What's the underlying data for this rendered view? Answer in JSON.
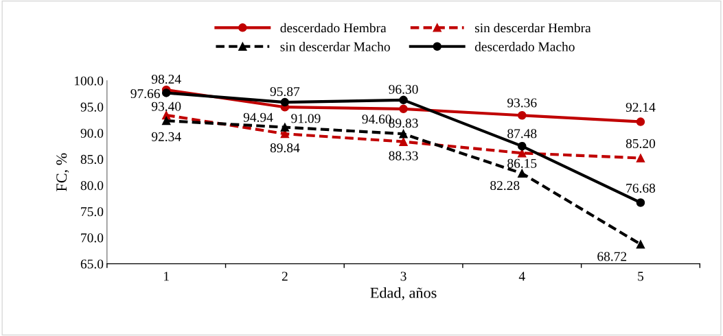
{
  "chart_data": {
    "type": "line",
    "xlabel": "Edad, años",
    "ylabel": "FC, %",
    "categories": [
      "1",
      "2",
      "3",
      "4",
      "5"
    ],
    "series": [
      {
        "name": "descerdado Hembra",
        "color": "#c00000",
        "marker": "circle",
        "line_style": "solid",
        "values": [
          98.24,
          94.94,
          94.6,
          93.36,
          92.14
        ],
        "value_labels": [
          "98.24",
          "94.94",
          "94.60",
          "93.36",
          "92.14"
        ]
      },
      {
        "name": "sin descerdar Hembra",
        "color": "#c00000",
        "marker": "triangle",
        "line_style": "dashed",
        "values": [
          93.4,
          89.84,
          88.33,
          86.15,
          85.2
        ],
        "value_labels": [
          "93.40",
          "89.84",
          "88.33",
          "86.15",
          "85.20"
        ]
      },
      {
        "name": "sin descerdar Macho",
        "color": "#000000",
        "marker": "triangle",
        "line_style": "dashed",
        "values": [
          92.34,
          91.09,
          89.83,
          82.28,
          68.72
        ],
        "value_labels": [
          "92.34",
          "91.09",
          "89.83",
          "82.28",
          "68.72"
        ]
      },
      {
        "name": "descerdado Macho",
        "color": "#000000",
        "marker": "circle",
        "line_style": "solid",
        "values": [
          97.66,
          95.87,
          96.3,
          87.48,
          76.68
        ],
        "value_labels": [
          "97.66",
          "95.87",
          "96.30",
          "87.48",
          "76.68"
        ]
      }
    ],
    "ylim": [
      65,
      100
    ],
    "yticks": [
      {
        "value": 65,
        "label": "65.0"
      },
      {
        "value": 70,
        "label": "70.0"
      },
      {
        "value": 75,
        "label": "75.0"
      },
      {
        "value": 80,
        "label": "80.0"
      },
      {
        "value": 85,
        "label": "85.0"
      },
      {
        "value": 90,
        "label": "90.0"
      },
      {
        "value": 95,
        "label": "95.0"
      },
      {
        "value": 100,
        "label": "100.0"
      }
    ],
    "grid": false,
    "legend": "top"
  }
}
